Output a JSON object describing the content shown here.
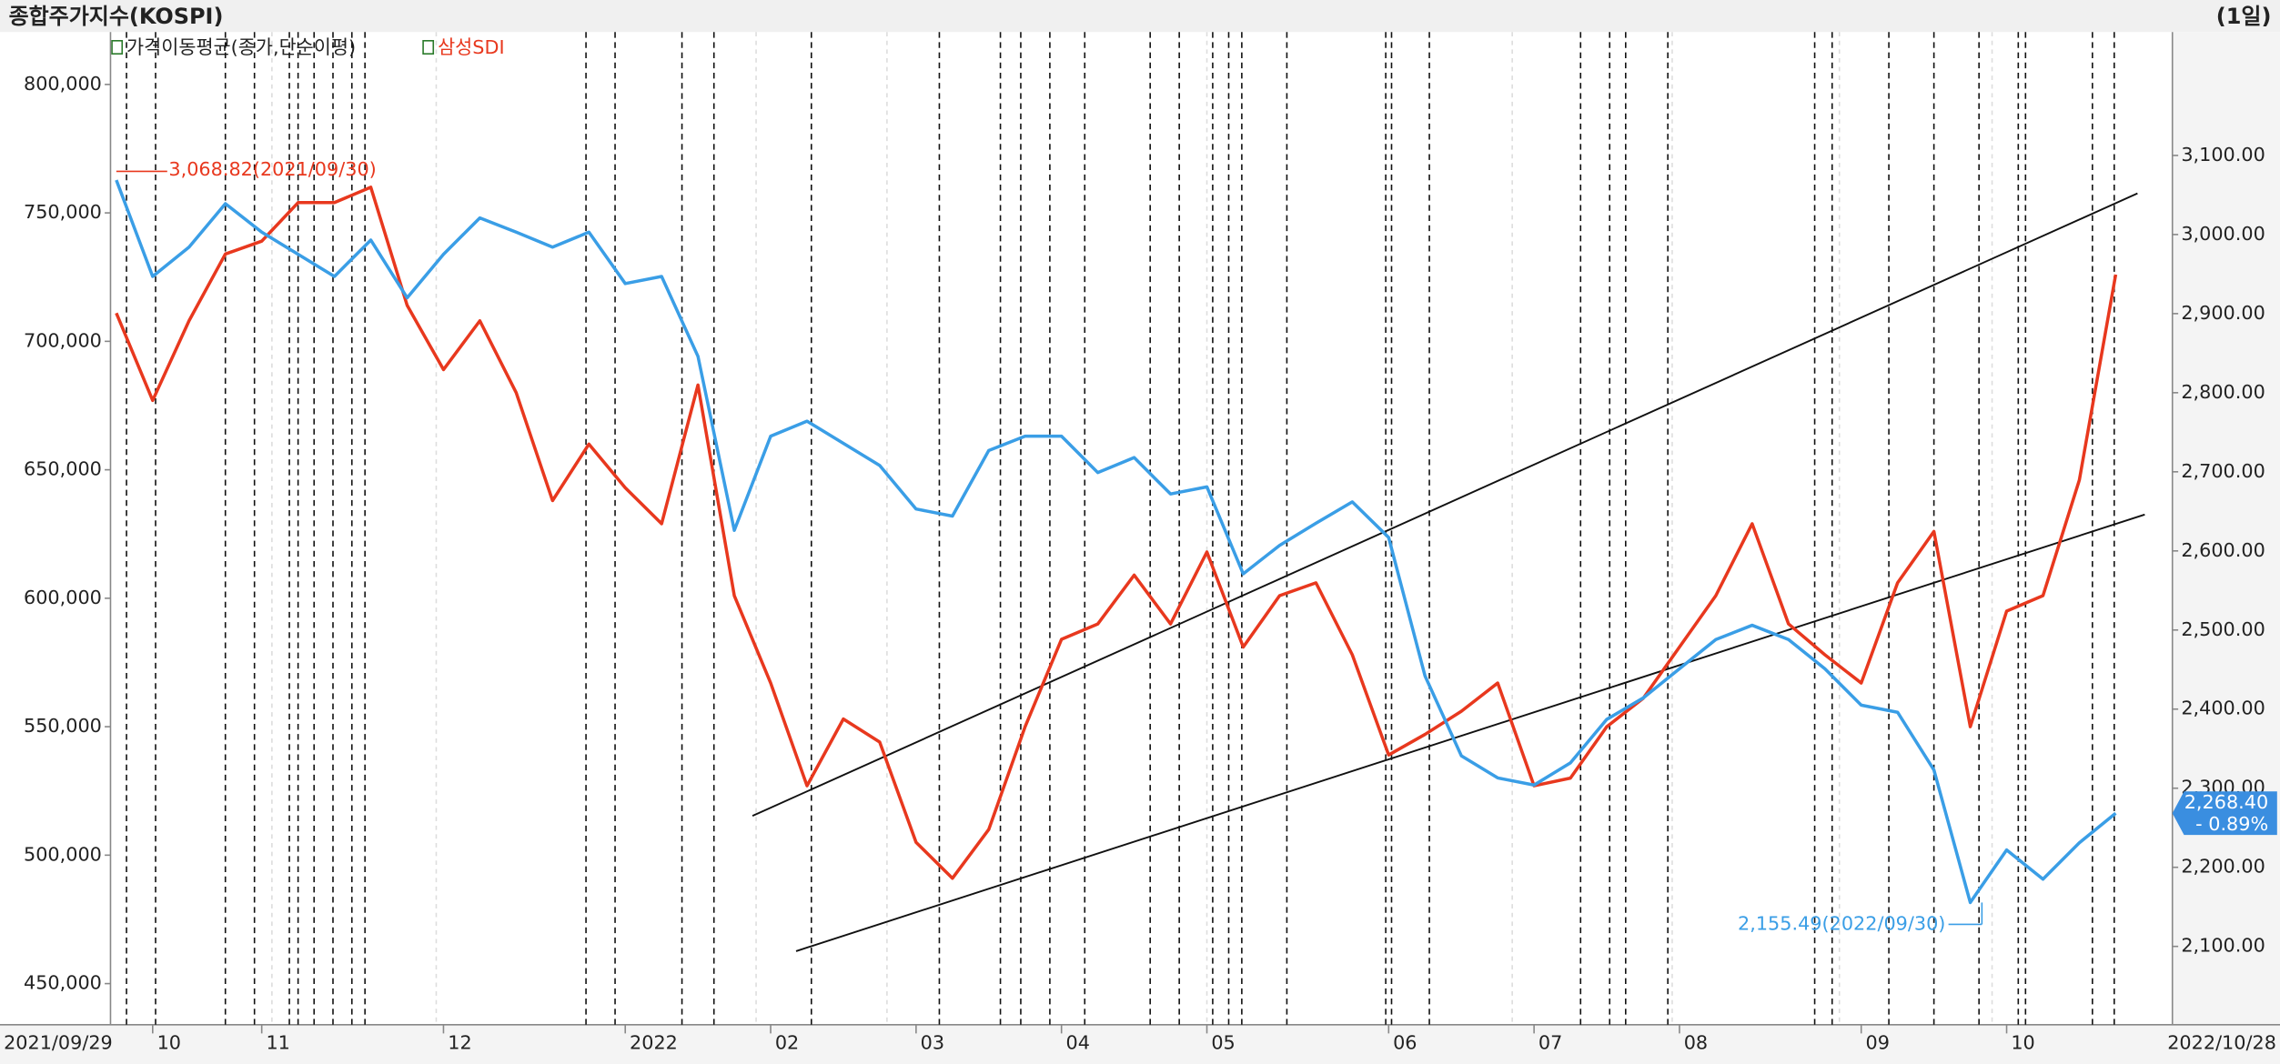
{
  "chart_data": {
    "type": "line",
    "title": "종합주가지수(KOSPI)",
    "period": "(1일)",
    "legend": [
      "가격이동평균(종가,단순이평)",
      "삼성SDI"
    ],
    "x_start_label": "2021/09/29",
    "x_end_label": "2022/10/28",
    "categories": [
      null,
      "10",
      null,
      null,
      "11",
      null,
      null,
      null,
      null,
      "12",
      null,
      null,
      null,
      null,
      "2022",
      null,
      null,
      null,
      "02",
      null,
      null,
      null,
      "03",
      null,
      null,
      null,
      "04",
      null,
      null,
      null,
      "05",
      null,
      null,
      null,
      null,
      "06",
      null,
      null,
      null,
      "07",
      null,
      null,
      null,
      "08",
      null,
      null,
      null,
      null,
      "09",
      null,
      null,
      null,
      "10",
      null,
      null,
      null
    ],
    "series": [
      {
        "name": "삼성SDI",
        "color": "#e8381e",
        "axis": "y",
        "values": [
          711000,
          677000,
          708000,
          734000,
          739000,
          754000,
          754000,
          760000,
          714000,
          689000,
          708000,
          680000,
          638000,
          660000,
          643000,
          629000,
          683000,
          601000,
          567000,
          527000,
          553000,
          544000,
          505000,
          491000,
          510000,
          550000,
          584000,
          590000,
          609000,
          590000,
          618000,
          581000,
          601000,
          606000,
          578000,
          539000,
          547000,
          556000,
          567000,
          527000,
          530000,
          550000,
          561000,
          581000,
          601000,
          629000,
          590000,
          578000,
          567000,
          606000,
          626000,
          550000,
          595000,
          601000,
          646000,
          726000
        ]
      },
      {
        "color": "#3a9ee6",
        "axis": "y2",
        "values": [
          3068.82,
          2947,
          2984,
          3039,
          3003,
          2975,
          2947,
          2993,
          2920,
          2975,
          3021,
          3003,
          2984,
          3003,
          2938,
          2947,
          2846,
          2626,
          2745,
          2764,
          2736,
          2708,
          2653,
          2644,
          2727,
          2745,
          2745,
          2699,
          2718,
          2672,
          2681,
          2571,
          2607,
          2635,
          2662,
          2617,
          2442,
          2341,
          2313,
          2304,
          2332,
          2387,
          2414,
          2451,
          2488,
          2506,
          2488,
          2451,
          2405,
          2396,
          2323,
          2155.49,
          2222,
          2185,
          2231,
          2268.4
        ]
      }
    ],
    "trendlines": [
      {
        "x": [
          17.5,
          55.6
        ],
        "values": [
          2265,
          3052
        ]
      },
      {
        "x": [
          18.7,
          55.8
        ],
        "values": [
          2094,
          2646
        ]
      }
    ],
    "annotations": [
      {
        "text": "3,068.82(2021/09/30)",
        "color": "#e8381e"
      },
      {
        "text": "2,155.49(2022/09/30)",
        "color": "#3a9ee6"
      }
    ],
    "last_value": {
      "value": "2,268.40",
      "change": "- 0.89%"
    },
    "ylim": [
      434000,
      820400
    ],
    "yticks": [
      {
        "value": 450000,
        "label": "450,000"
      },
      {
        "value": 500000,
        "label": "500,000"
      },
      {
        "value": 550000,
        "label": "550,000"
      },
      {
        "value": 600000,
        "label": "600,000"
      },
      {
        "value": 650000,
        "label": "650,000"
      },
      {
        "value": 700000,
        "label": "700,000"
      },
      {
        "value": 750000,
        "label": "750,000"
      },
      {
        "value": 800000,
        "label": "800,000"
      }
    ],
    "y2lim": [
      2001,
      3256
    ],
    "y2ticks": [
      {
        "value": 2100,
        "label": "2,100.00"
      },
      {
        "value": 2200,
        "label": "2,200.00"
      },
      {
        "value": 2300,
        "label": "2,300.00"
      },
      {
        "value": 2400,
        "label": "2,400.00"
      },
      {
        "value": 2500,
        "label": "2,500.00"
      },
      {
        "value": 2600,
        "label": "2,600.00"
      },
      {
        "value": 2700,
        "label": "2,700.00"
      },
      {
        "value": 2800,
        "label": "2,800.00"
      },
      {
        "value": 2900,
        "label": "2,900.00"
      },
      {
        "value": 3000,
        "label": "3,000.00"
      },
      {
        "value": 3100,
        "label": "3,100.00"
      }
    ]
  }
}
